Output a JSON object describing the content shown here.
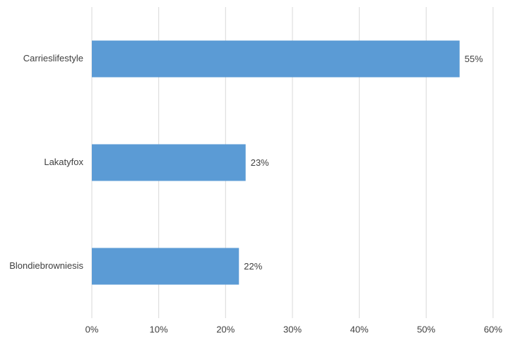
{
  "chart_data": {
    "type": "bar",
    "orientation": "horizontal",
    "categories": [
      "Carrieslifestyle",
      "Lakatyfox",
      "Blondiebrowniesis"
    ],
    "values": [
      55,
      23,
      22
    ],
    "value_labels": [
      "55%",
      "23%",
      "22%"
    ],
    "color": "#5b9bd5",
    "xlim": [
      0,
      60
    ],
    "xticks": [
      {
        "value": 0,
        "label": "0%"
      },
      {
        "value": 10,
        "label": "10%"
      },
      {
        "value": 20,
        "label": "20%"
      },
      {
        "value": 30,
        "label": "30%"
      },
      {
        "value": 40,
        "label": "40%"
      },
      {
        "value": 50,
        "label": "50%"
      },
      {
        "value": 60,
        "label": "60%"
      }
    ],
    "grid": true
  }
}
